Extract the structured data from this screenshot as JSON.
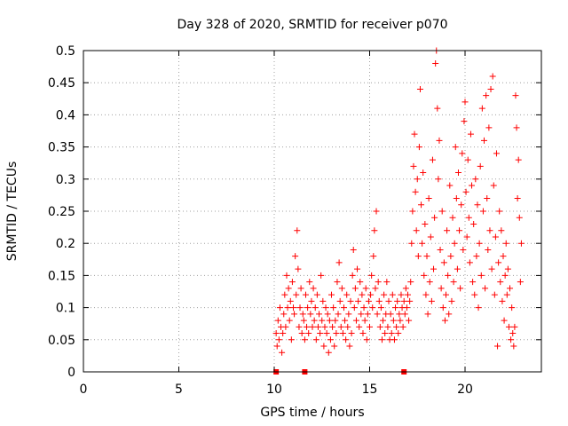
{
  "chart_data": {
    "type": "scatter",
    "title": "Day 328 of 2020, SRMTID for receiver p070",
    "xlabel": "GPS time / hours",
    "ylabel": "SRMTID / TECUs",
    "xlim": [
      0,
      24
    ],
    "ylim": [
      0,
      0.5
    ],
    "xticks": [
      0,
      5,
      10,
      15,
      20
    ],
    "xtick_labels": [
      "0",
      "5",
      "10",
      "15",
      "20"
    ],
    "yticks": [
      0,
      0.05,
      0.1,
      0.15,
      0.2,
      0.25,
      0.3,
      0.35,
      0.4,
      0.45,
      0.5
    ],
    "ytick_labels": [
      "0",
      "0.05",
      "0.1",
      "0.15",
      "0.2",
      "0.25",
      "0.3",
      "0.35",
      "0.4",
      "0.45",
      "0.5"
    ],
    "grid": true,
    "marker": "+",
    "color": "#ff0000",
    "baseline_markers_x": [
      10.1,
      11.6,
      16.8
    ],
    "series": [
      {
        "name": "SRMTID",
        "points": [
          [
            10.1,
            0.06
          ],
          [
            10.15,
            0.04
          ],
          [
            10.2,
            0.08
          ],
          [
            10.25,
            0.05
          ],
          [
            10.3,
            0.1
          ],
          [
            10.35,
            0.07
          ],
          [
            10.4,
            0.03
          ],
          [
            10.45,
            0.06
          ],
          [
            10.5,
            0.09
          ],
          [
            10.55,
            0.12
          ],
          [
            10.6,
            0.07
          ],
          [
            10.65,
            0.15
          ],
          [
            10.7,
            0.1
          ],
          [
            10.75,
            0.13
          ],
          [
            10.8,
            0.08
          ],
          [
            10.85,
            0.11
          ],
          [
            10.9,
            0.05
          ],
          [
            10.95,
            0.14
          ],
          [
            11.0,
            0.1
          ],
          [
            11.05,
            0.09
          ],
          [
            11.1,
            0.18
          ],
          [
            11.15,
            0.12
          ],
          [
            11.2,
            0.22
          ],
          [
            11.25,
            0.16
          ],
          [
            11.3,
            0.07
          ],
          [
            11.35,
            0.1
          ],
          [
            11.4,
            0.13
          ],
          [
            11.45,
            0.06
          ],
          [
            11.5,
            0.09
          ],
          [
            11.55,
            0.08
          ],
          [
            11.6,
            0.05
          ],
          [
            11.65,
            0.12
          ],
          [
            11.7,
            0.07
          ],
          [
            11.75,
            0.1
          ],
          [
            11.8,
            0.06
          ],
          [
            11.85,
            0.14
          ],
          [
            11.9,
            0.09
          ],
          [
            11.95,
            0.11
          ],
          [
            12.0,
            0.07
          ],
          [
            12.05,
            0.13
          ],
          [
            12.1,
            0.08
          ],
          [
            12.15,
            0.1
          ],
          [
            12.2,
            0.05
          ],
          [
            12.25,
            0.12
          ],
          [
            12.3,
            0.07
          ],
          [
            12.35,
            0.09
          ],
          [
            12.4,
            0.06
          ],
          [
            12.45,
            0.15
          ],
          [
            12.5,
            0.08
          ],
          [
            12.55,
            0.11
          ],
          [
            12.6,
            0.04
          ],
          [
            12.65,
            0.07
          ],
          [
            12.7,
            0.1
          ],
          [
            12.75,
            0.06
          ],
          [
            12.8,
            0.09
          ],
          [
            12.85,
            0.03
          ],
          [
            12.9,
            0.08
          ],
          [
            12.95,
            0.05
          ],
          [
            13.0,
            0.12
          ],
          [
            13.05,
            0.07
          ],
          [
            13.1,
            0.1
          ],
          [
            13.15,
            0.04
          ],
          [
            13.2,
            0.08
          ],
          [
            13.25,
            0.06
          ],
          [
            13.3,
            0.14
          ],
          [
            13.35,
            0.09
          ],
          [
            13.4,
            0.17
          ],
          [
            13.45,
            0.11
          ],
          [
            13.5,
            0.07
          ],
          [
            13.55,
            0.13
          ],
          [
            13.6,
            0.06
          ],
          [
            13.65,
            0.1
          ],
          [
            13.7,
            0.08
          ],
          [
            13.75,
            0.05
          ],
          [
            13.8,
            0.12
          ],
          [
            13.85,
            0.07
          ],
          [
            13.9,
            0.09
          ],
          [
            13.95,
            0.04
          ],
          [
            14.0,
            0.11
          ],
          [
            14.05,
            0.06
          ],
          [
            14.1,
            0.15
          ],
          [
            14.15,
            0.19
          ],
          [
            14.2,
            0.1
          ],
          [
            14.25,
            0.13
          ],
          [
            14.3,
            0.08
          ],
          [
            14.35,
            0.16
          ],
          [
            14.4,
            0.11
          ],
          [
            14.45,
            0.07
          ],
          [
            14.5,
            0.14
          ],
          [
            14.55,
            0.09
          ],
          [
            14.6,
            0.12
          ],
          [
            14.65,
            0.06
          ],
          [
            14.7,
            0.1
          ],
          [
            14.75,
            0.08
          ],
          [
            14.8,
            0.13
          ],
          [
            14.85,
            0.05
          ],
          [
            14.9,
            0.09
          ],
          [
            14.95,
            0.11
          ],
          [
            15.0,
            0.07
          ],
          [
            15.05,
            0.12
          ],
          [
            15.1,
            0.15
          ],
          [
            15.15,
            0.1
          ],
          [
            15.2,
            0.18
          ],
          [
            15.25,
            0.22
          ],
          [
            15.3,
            0.13
          ],
          [
            15.35,
            0.25
          ],
          [
            15.4,
            0.09
          ],
          [
            15.45,
            0.14
          ],
          [
            15.5,
            0.11
          ],
          [
            15.55,
            0.07
          ],
          [
            15.6,
            0.1
          ],
          [
            15.65,
            0.05
          ],
          [
            15.7,
            0.08
          ],
          [
            15.75,
            0.12
          ],
          [
            15.8,
            0.06
          ],
          [
            15.85,
            0.09
          ],
          [
            15.9,
            0.14
          ],
          [
            15.95,
            0.07
          ],
          [
            16.0,
            0.11
          ],
          [
            16.05,
            0.05
          ],
          [
            16.1,
            0.09
          ],
          [
            16.15,
            0.06
          ],
          [
            16.2,
            0.12
          ],
          [
            16.25,
            0.08
          ],
          [
            16.3,
            0.05
          ],
          [
            16.35,
            0.1
          ],
          [
            16.4,
            0.07
          ],
          [
            16.45,
            0.11
          ],
          [
            16.5,
            0.06
          ],
          [
            16.55,
            0.09
          ],
          [
            16.6,
            0.08
          ],
          [
            16.65,
            0.12
          ],
          [
            16.7,
            0.1
          ],
          [
            16.75,
            0.07
          ],
          [
            16.8,
            0.11
          ],
          [
            16.85,
            0.09
          ],
          [
            16.9,
            0.13
          ],
          [
            16.95,
            0.1
          ],
          [
            17.0,
            0.12
          ],
          [
            17.05,
            0.08
          ],
          [
            17.1,
            0.11
          ],
          [
            17.15,
            0.14
          ],
          [
            17.2,
            0.2
          ],
          [
            17.25,
            0.25
          ],
          [
            17.3,
            0.32
          ],
          [
            17.35,
            0.37
          ],
          [
            17.4,
            0.28
          ],
          [
            17.45,
            0.22
          ],
          [
            17.5,
            0.3
          ],
          [
            17.55,
            0.18
          ],
          [
            17.6,
            0.35
          ],
          [
            17.65,
            0.44
          ],
          [
            17.7,
            0.26
          ],
          [
            17.75,
            0.2
          ],
          [
            17.8,
            0.31
          ],
          [
            17.85,
            0.15
          ],
          [
            17.9,
            0.23
          ],
          [
            17.95,
            0.12
          ],
          [
            18.0,
            0.18
          ],
          [
            18.05,
            0.09
          ],
          [
            18.1,
            0.27
          ],
          [
            18.15,
            0.14
          ],
          [
            18.2,
            0.21
          ],
          [
            18.25,
            0.11
          ],
          [
            18.3,
            0.33
          ],
          [
            18.35,
            0.16
          ],
          [
            18.4,
            0.24
          ],
          [
            18.45,
            0.48
          ],
          [
            18.5,
            0.5
          ],
          [
            18.55,
            0.41
          ],
          [
            18.6,
            0.3
          ],
          [
            18.65,
            0.36
          ],
          [
            18.7,
            0.19
          ],
          [
            18.75,
            0.13
          ],
          [
            18.8,
            0.25
          ],
          [
            18.85,
            0.1
          ],
          [
            18.9,
            0.17
          ],
          [
            18.95,
            0.08
          ],
          [
            19.0,
            0.12
          ],
          [
            19.05,
            0.22
          ],
          [
            19.1,
            0.15
          ],
          [
            19.15,
            0.09
          ],
          [
            19.2,
            0.29
          ],
          [
            19.25,
            0.18
          ],
          [
            19.3,
            0.11
          ],
          [
            19.35,
            0.24
          ],
          [
            19.4,
            0.14
          ],
          [
            19.45,
            0.2
          ],
          [
            19.5,
            0.35
          ],
          [
            19.55,
            0.27
          ],
          [
            19.6,
            0.16
          ],
          [
            19.65,
            0.31
          ],
          [
            19.7,
            0.22
          ],
          [
            19.75,
            0.13
          ],
          [
            19.8,
            0.26
          ],
          [
            19.85,
            0.34
          ],
          [
            19.9,
            0.19
          ],
          [
            19.95,
            0.39
          ],
          [
            20.0,
            0.42
          ],
          [
            20.05,
            0.28
          ],
          [
            20.1,
            0.21
          ],
          [
            20.15,
            0.33
          ],
          [
            20.2,
            0.24
          ],
          [
            20.25,
            0.17
          ],
          [
            20.3,
            0.37
          ],
          [
            20.35,
            0.29
          ],
          [
            20.4,
            0.14
          ],
          [
            20.45,
            0.23
          ],
          [
            20.5,
            0.12
          ],
          [
            20.55,
            0.3
          ],
          [
            20.6,
            0.18
          ],
          [
            20.65,
            0.26
          ],
          [
            20.7,
            0.1
          ],
          [
            20.75,
            0.2
          ],
          [
            20.8,
            0.32
          ],
          [
            20.85,
            0.15
          ],
          [
            20.9,
            0.41
          ],
          [
            20.95,
            0.25
          ],
          [
            21.0,
            0.36
          ],
          [
            21.05,
            0.13
          ],
          [
            21.1,
            0.43
          ],
          [
            21.15,
            0.27
          ],
          [
            21.2,
            0.19
          ],
          [
            21.25,
            0.38
          ],
          [
            21.3,
            0.22
          ],
          [
            21.35,
            0.44
          ],
          [
            21.4,
            0.16
          ],
          [
            21.45,
            0.46
          ],
          [
            21.5,
            0.29
          ],
          [
            21.55,
            0.12
          ],
          [
            21.6,
            0.21
          ],
          [
            21.65,
            0.34
          ],
          [
            21.7,
            0.04
          ],
          [
            21.75,
            0.17
          ],
          [
            21.8,
            0.25
          ],
          [
            21.85,
            0.14
          ],
          [
            21.9,
            0.22
          ],
          [
            21.95,
            0.11
          ],
          [
            22.0,
            0.18
          ],
          [
            22.05,
            0.08
          ],
          [
            22.1,
            0.15
          ],
          [
            22.15,
            0.2
          ],
          [
            22.2,
            0.12
          ],
          [
            22.25,
            0.16
          ],
          [
            22.3,
            0.07
          ],
          [
            22.35,
            0.13
          ],
          [
            22.4,
            0.05
          ],
          [
            22.45,
            0.1
          ],
          [
            22.5,
            0.06
          ],
          [
            22.55,
            0.04
          ],
          [
            22.6,
            0.07
          ],
          [
            22.65,
            0.43
          ],
          [
            22.7,
            0.38
          ],
          [
            22.75,
            0.27
          ],
          [
            22.8,
            0.33
          ],
          [
            22.85,
            0.24
          ],
          [
            22.9,
            0.14
          ],
          [
            22.95,
            0.2
          ]
        ]
      }
    ]
  }
}
